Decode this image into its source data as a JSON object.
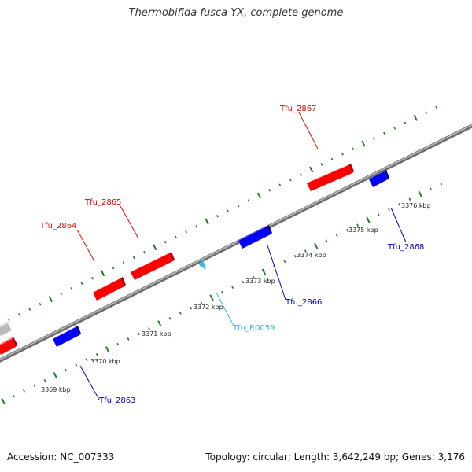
{
  "title": "Thermobifida fusca YX, complete genome",
  "footer": {
    "accession": "Accession: NC_007333",
    "summary": "Topology: circular; Length: 3,642,249 bp; Genes: 3,176"
  },
  "colors": {
    "forward_gene": "#ff0000",
    "reverse_gene": "#0000ff",
    "rna": "#33bbee",
    "other": "#bbbbbb",
    "ticks": "#2a7a2a",
    "backbone": "#777777"
  },
  "scale_labels": [
    "3369 kbp",
    "3370 kbp",
    "3371 kbp",
    "3372 kbp",
    "3373 kbp",
    "3374 kbp",
    "3375 kbp",
    "3376 kbp"
  ],
  "genes": [
    {
      "name": "Tfu_2863",
      "strand": "reverse",
      "type": "gene"
    },
    {
      "name": "Tfu_2864",
      "strand": "forward",
      "type": "gene"
    },
    {
      "name": "Tfu_2865",
      "strand": "forward",
      "type": "gene"
    },
    {
      "name": "Tfu_R0059",
      "strand": "reverse",
      "type": "rna"
    },
    {
      "name": "Tfu_2866",
      "strand": "reverse",
      "type": "gene"
    },
    {
      "name": "Tfu_2867",
      "strand": "forward",
      "type": "gene"
    },
    {
      "name": "Tfu_2868",
      "strand": "reverse",
      "type": "gene"
    }
  ]
}
